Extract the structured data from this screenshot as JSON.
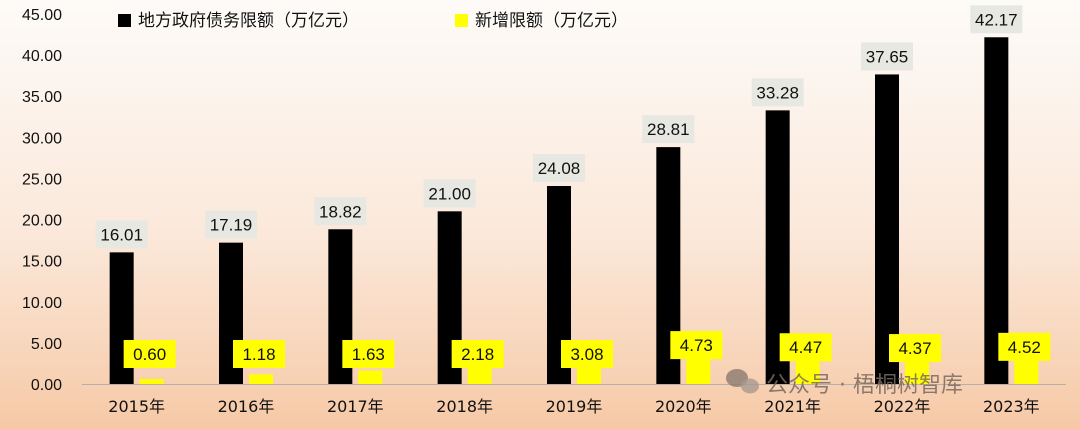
{
  "chart_data": {
    "type": "bar",
    "categories": [
      "2015年",
      "2016年",
      "2017年",
      "2018年",
      "2019年",
      "2020年",
      "2021年",
      "2022年",
      "2023年"
    ],
    "series": [
      {
        "name": "地方政府债务限额（万亿元）",
        "color": "#000000",
        "label_bg": "#e8e8e2",
        "values": [
          16.01,
          17.19,
          18.82,
          21.0,
          24.08,
          28.81,
          33.28,
          37.65,
          42.17
        ]
      },
      {
        "name": "新增限额（万亿元）",
        "color": "#ffff00",
        "label_bg": "#ffff00",
        "values": [
          0.6,
          1.18,
          1.63,
          2.18,
          3.08,
          4.73,
          4.47,
          4.37,
          4.52
        ]
      }
    ],
    "ylim": [
      0,
      45
    ],
    "yticks": [
      "0.00",
      "5.00",
      "10.00",
      "15.00",
      "20.00",
      "25.00",
      "30.00",
      "35.00",
      "40.00",
      "45.00"
    ],
    "legend": "top",
    "grid": false
  },
  "watermark": {
    "text": "公众号 · 梧桐树智库",
    "icon": "wechat-icon"
  }
}
